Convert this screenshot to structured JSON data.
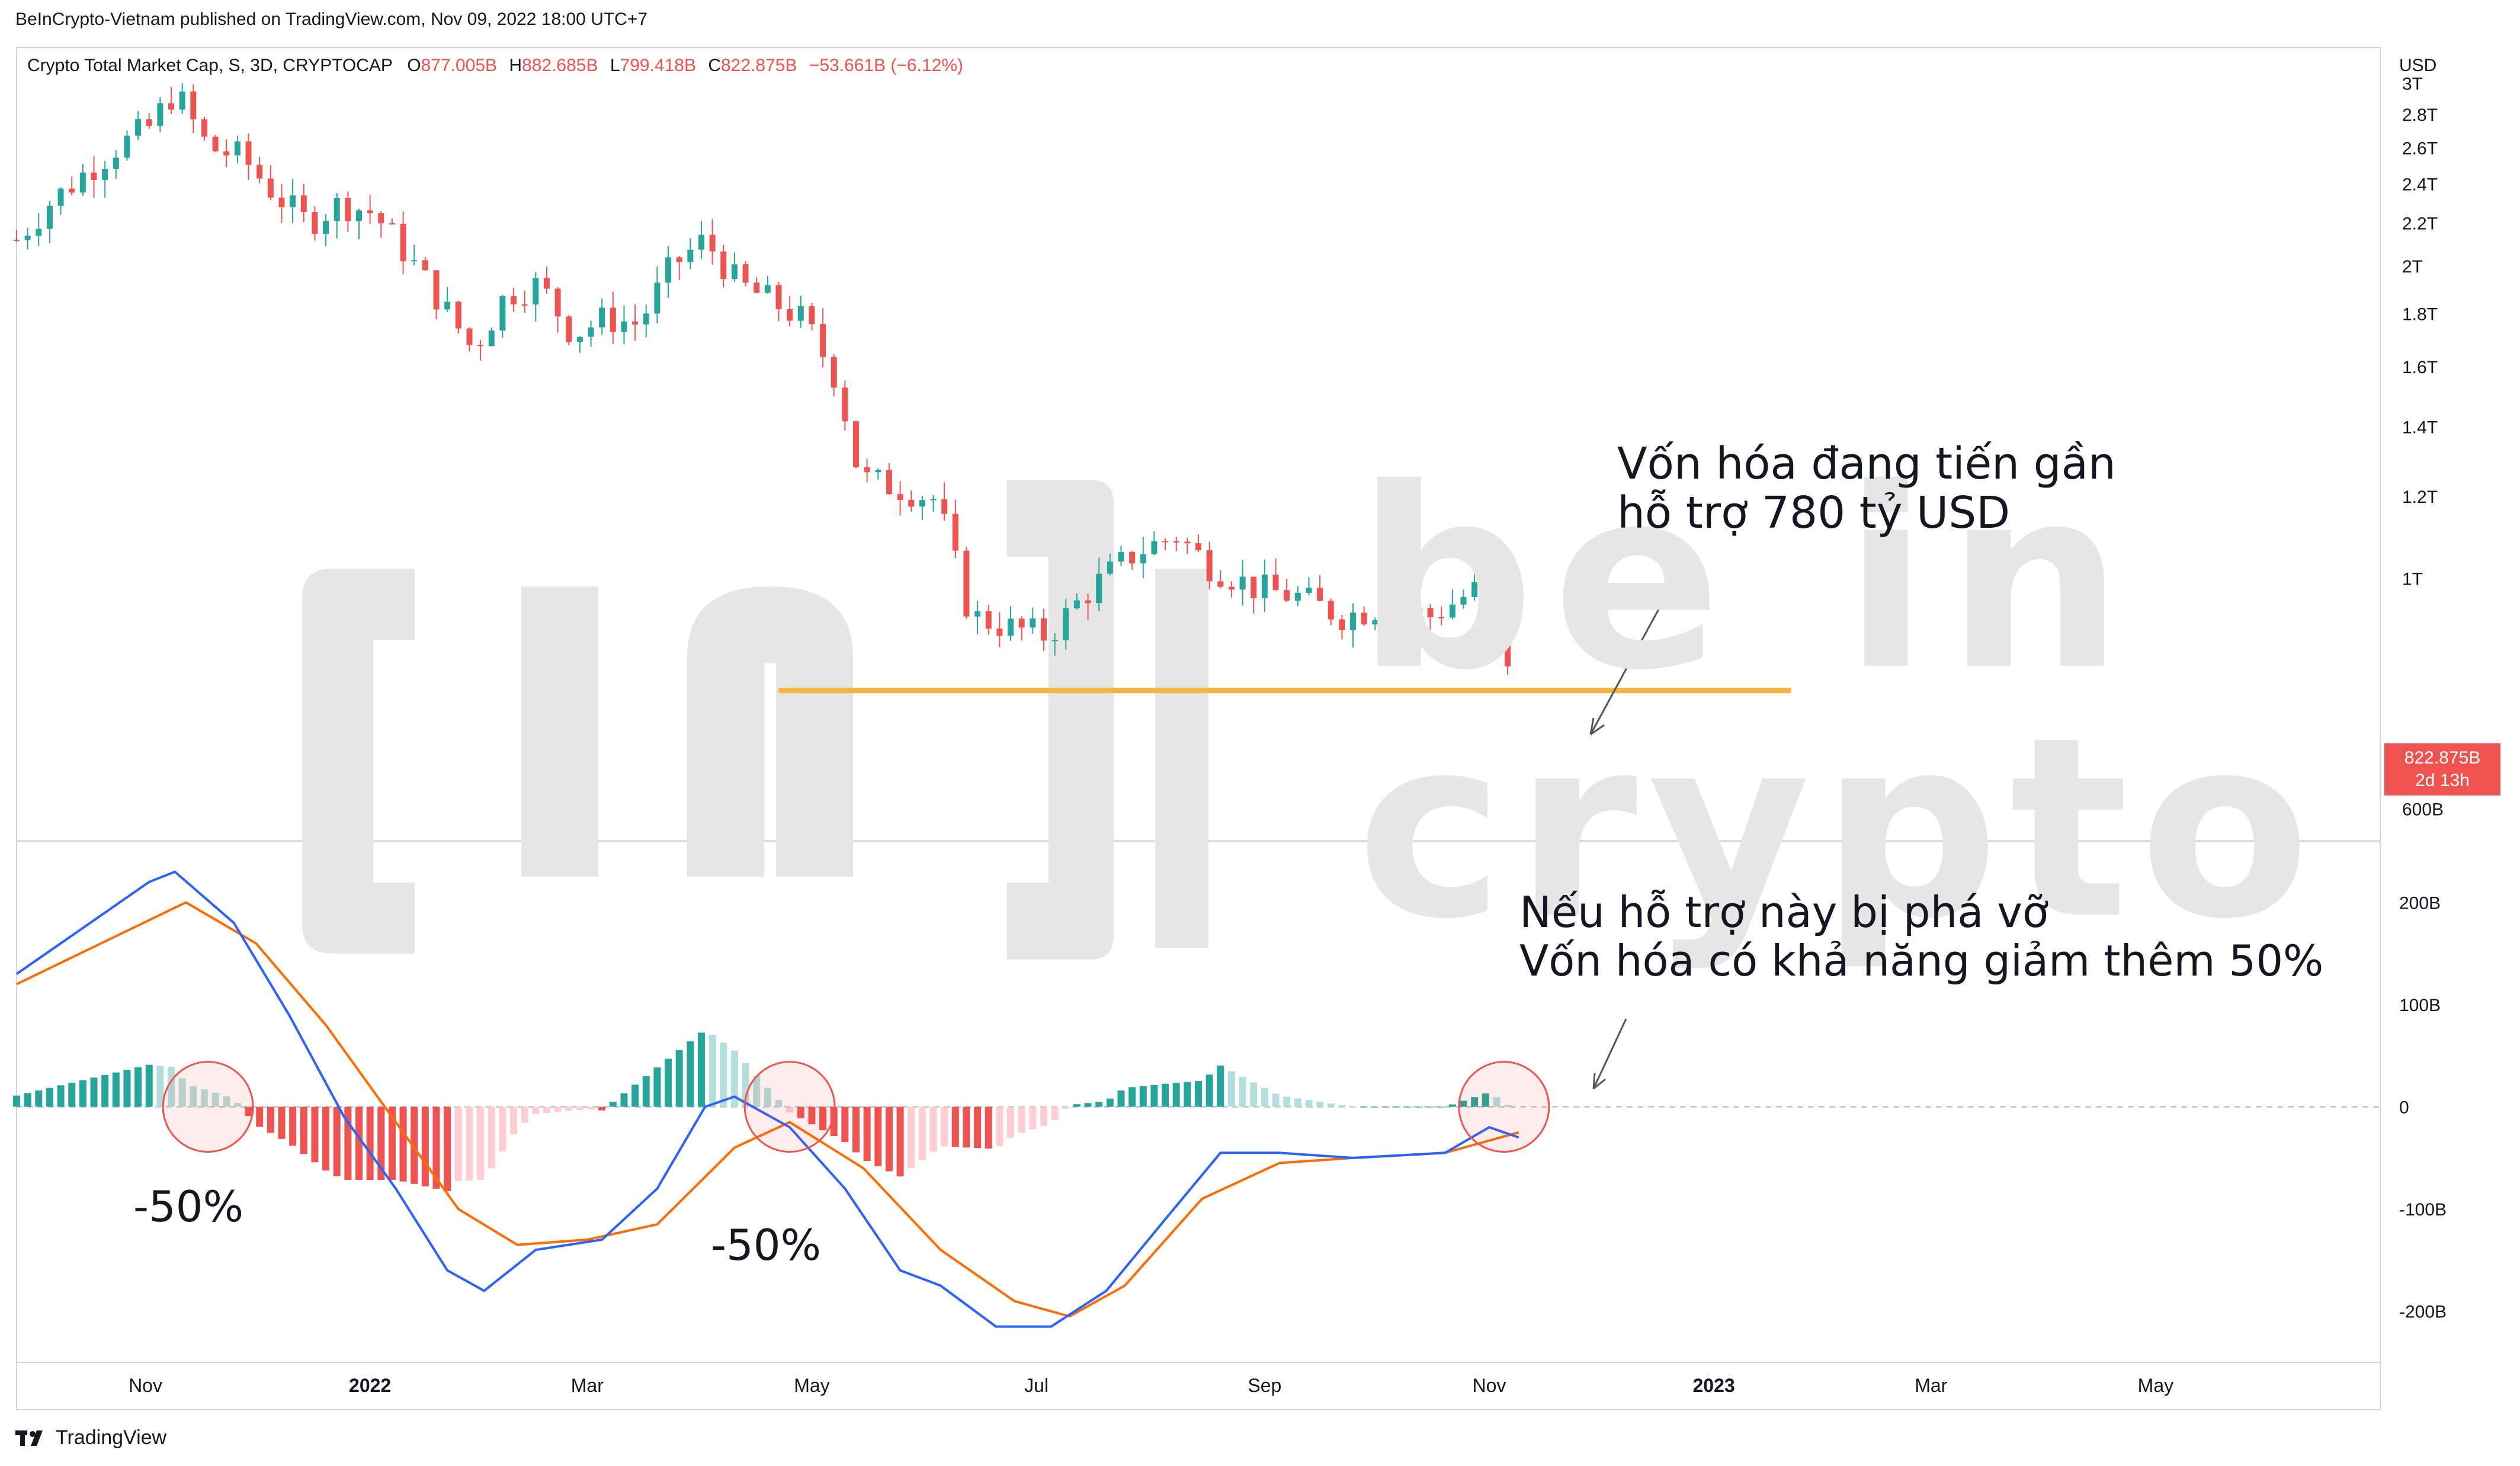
{
  "header": {
    "published_line": "BeInCrypto-Vietnam published on TradingView.com, Nov 09, 2022 18:00 UTC+7",
    "symbol_line": "Crypto Total Market Cap, S, 3D, CRYPTOCAP",
    "open_label": "O",
    "open_value": "877.005B",
    "high_label": "H",
    "high_value": "882.685B",
    "low_label": "L",
    "low_value": "799.418B",
    "close_label": "C",
    "close_value": "822.875B",
    "change_value": "−53.661B (−6.12%)"
  },
  "watermark": {
    "line1": "be in",
    "line2": "crypto"
  },
  "annotations": {
    "top_line1": "Vốn hóa đang tiến gần",
    "top_line2": "hỗ trợ 780 tỷ USD",
    "bottom_line1": "Nếu hỗ trợ này bị phá vỡ",
    "bottom_line2": "Vốn hóa có khả năng giảm thêm 50%",
    "pct_left": "-50%",
    "pct_right": "-50%"
  },
  "price_tag": {
    "value": "822.875B",
    "countdown": "2d 13h"
  },
  "branding": {
    "name": "TradingView"
  },
  "colors": {
    "up": "#26a69a",
    "down": "#ef5350",
    "up_fade": "#b2dfdb",
    "down_fade": "#ffcdd2",
    "support": "#f5b342",
    "macd": "#2962ff",
    "signal": "#ff6d00",
    "circle": "#ef5350"
  },
  "chart_data": [
    {
      "type": "candlestick",
      "title": "Crypto Total Market Cap, S, 3D, CRYPTOCAP",
      "currency": "USD",
      "y_scale": "log",
      "y_ticks": [
        "600B",
        "1T",
        "1.2T",
        "1.4T",
        "1.6T",
        "1.8T",
        "2T",
        "2.2T",
        "2.4T",
        "2.6T",
        "2.8T",
        "3T"
      ],
      "y_tick_values": [
        600,
        1000,
        1200,
        1400,
        1600,
        1800,
        2000,
        2200,
        2400,
        2600,
        2800,
        3000
      ],
      "x_ticks": [
        "Nov",
        "2022",
        "Mar",
        "May",
        "Jul",
        "Sep",
        "Nov",
        "2023",
        "Mar",
        "May"
      ],
      "x_tick_dates": [
        "2021-11-01",
        "2022-01-01",
        "2022-03-01",
        "2022-05-01",
        "2022-07-01",
        "2022-09-01",
        "2022-11-01",
        "2023-01-01",
        "2023-03-01",
        "2023-05-01"
      ],
      "x_range": [
        "2021-09-27",
        "2023-07-01"
      ],
      "y_range_billions": [
        560,
        3240
      ],
      "support_level_billions": 780,
      "support_range": [
        "2022-04-22",
        "2023-01-22"
      ],
      "last_bar": {
        "open": 877.005,
        "high": 882.685,
        "low": 799.418,
        "close": 822.875
      },
      "close_path": [
        [
          "2021-09-27",
          2120
        ],
        [
          "2021-10-06",
          2300
        ],
        [
          "2021-10-15",
          2450
        ],
        [
          "2021-10-24",
          2600
        ],
        [
          "2021-11-02",
          2720
        ],
        [
          "2021-11-09",
          2950
        ],
        [
          "2021-11-18",
          2600
        ],
        [
          "2021-11-27",
          2550
        ],
        [
          "2021-12-06",
          2350
        ],
        [
          "2021-12-15",
          2200
        ],
        [
          "2021-12-24",
          2300
        ],
        [
          "2022-01-02",
          2250
        ],
        [
          "2022-01-11",
          2050
        ],
        [
          "2022-01-20",
          1850
        ],
        [
          "2022-01-29",
          1660
        ],
        [
          "2022-02-07",
          1880
        ],
        [
          "2022-02-16",
          1920
        ],
        [
          "2022-02-25",
          1720
        ],
        [
          "2022-03-06",
          1780
        ],
        [
          "2022-03-15",
          1760
        ],
        [
          "2022-03-24",
          2000
        ],
        [
          "2022-04-02",
          2120
        ],
        [
          "2022-04-11",
          1920
        ],
        [
          "2022-04-20",
          1850
        ],
        [
          "2022-04-29",
          1770
        ],
        [
          "2022-05-08",
          1550
        ],
        [
          "2022-05-14",
          1250
        ],
        [
          "2022-05-26",
          1220
        ],
        [
          "2022-06-04",
          1190
        ],
        [
          "2022-06-13",
          920
        ],
        [
          "2022-06-22",
          900
        ],
        [
          "2022-07-04",
          880
        ],
        [
          "2022-07-16",
          980
        ],
        [
          "2022-07-28",
          1060
        ],
        [
          "2022-08-08",
          1100
        ],
        [
          "2022-08-17",
          1030
        ],
        [
          "2022-08-29",
          980
        ],
        [
          "2022-09-10",
          960
        ],
        [
          "2022-09-22",
          920
        ],
        [
          "2022-10-04",
          940
        ],
        [
          "2022-10-16",
          920
        ],
        [
          "2022-10-25",
          960
        ],
        [
          "2022-11-03",
          1000
        ],
        [
          "2022-11-09",
          823
        ]
      ]
    },
    {
      "type": "macd",
      "series": [
        "MACD",
        "Signal",
        "Histogram"
      ],
      "y_ticks": [
        "-200B",
        "-100B",
        "0",
        "100B",
        "200B"
      ],
      "y_tick_values": [
        -200,
        -100,
        0,
        100,
        200
      ],
      "y_range_billions": [
        -250,
        260
      ],
      "macd": [
        [
          "2021-09-27",
          130
        ],
        [
          "2021-10-15",
          175
        ],
        [
          "2021-11-02",
          220
        ],
        [
          "2021-11-09",
          230
        ],
        [
          "2021-11-25",
          180
        ],
        [
          "2021-12-10",
          90
        ],
        [
          "2021-12-25",
          -10
        ],
        [
          "2022-01-08",
          -80
        ],
        [
          "2022-01-22",
          -160
        ],
        [
          "2022-02-01",
          -180
        ],
        [
          "2022-02-15",
          -140
        ],
        [
          "2022-03-05",
          -130
        ],
        [
          "2022-03-20",
          -80
        ],
        [
          "2022-04-02",
          0
        ],
        [
          "2022-04-10",
          10
        ],
        [
          "2022-04-25",
          -20
        ],
        [
          "2022-05-10",
          -80
        ],
        [
          "2022-05-25",
          -160
        ],
        [
          "2022-06-05",
          -175
        ],
        [
          "2022-06-20",
          -215
        ],
        [
          "2022-07-05",
          -215
        ],
        [
          "2022-07-20",
          -180
        ],
        [
          "2022-08-05",
          -110
        ],
        [
          "2022-08-20",
          -45
        ],
        [
          "2022-09-05",
          -45
        ],
        [
          "2022-09-25",
          -50
        ],
        [
          "2022-10-20",
          -45
        ],
        [
          "2022-11-01",
          -20
        ],
        [
          "2022-11-09",
          -30
        ]
      ],
      "signal": [
        [
          "2021-09-27",
          120
        ],
        [
          "2021-10-20",
          160
        ],
        [
          "2021-11-12",
          200
        ],
        [
          "2021-12-01",
          160
        ],
        [
          "2021-12-20",
          80
        ],
        [
          "2022-01-05",
          0
        ],
        [
          "2022-01-25",
          -100
        ],
        [
          "2022-02-10",
          -135
        ],
        [
          "2022-03-01",
          -130
        ],
        [
          "2022-03-20",
          -115
        ],
        [
          "2022-04-10",
          -40
        ],
        [
          "2022-04-25",
          -15
        ],
        [
          "2022-05-15",
          -60
        ],
        [
          "2022-06-05",
          -140
        ],
        [
          "2022-06-25",
          -190
        ],
        [
          "2022-07-10",
          -205
        ],
        [
          "2022-07-25",
          -175
        ],
        [
          "2022-08-15",
          -90
        ],
        [
          "2022-09-05",
          -55
        ],
        [
          "2022-09-25",
          -50
        ],
        [
          "2022-10-20",
          -45
        ],
        [
          "2022-11-09",
          -25
        ]
      ],
      "signal_circles": [
        "2021-11-18",
        "2022-04-25",
        "2022-11-05"
      ]
    }
  ]
}
